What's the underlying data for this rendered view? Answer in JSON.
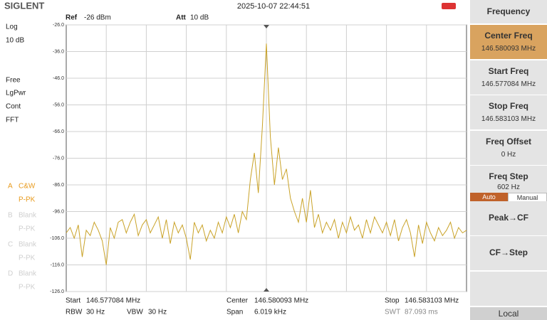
{
  "header": {
    "brand": "SIGLENT",
    "datetime": "2025-10-07 22:44:51"
  },
  "left_panel": {
    "scale": "Log",
    "scale_div": "10 dB",
    "trigger": "Free",
    "detector": "LgPwr",
    "sweep": "Cont",
    "mode": "FFT",
    "traces": [
      {
        "letter": "A",
        "mode": "C&W",
        "det": "P-PK"
      },
      {
        "letter": "B",
        "mode": "Blank",
        "det": "P-PK"
      },
      {
        "letter": "C",
        "mode": "Blank",
        "det": "P-PK"
      },
      {
        "letter": "D",
        "mode": "Blank",
        "det": "P-PK"
      }
    ]
  },
  "chart_data": {
    "type": "line",
    "ref_label": "Ref",
    "ref_value": "-26 dBm",
    "att_label": "Att",
    "att_value": "10 dB",
    "xlim": [
      146.577084,
      146.583103
    ],
    "ylim": [
      -126,
      -26
    ],
    "yticks": [
      {
        "value": -26,
        "label": "-26.0"
      },
      {
        "value": -36,
        "label": "-36.0"
      },
      {
        "value": -46,
        "label": "-46.0"
      },
      {
        "value": -56,
        "label": "-56.0"
      },
      {
        "value": -66,
        "label": "-66.0"
      },
      {
        "value": -76,
        "label": "-76.0"
      },
      {
        "value": -86,
        "label": "-86.0"
      },
      {
        "value": -96,
        "label": "-96.0"
      },
      {
        "value": -106,
        "label": "-106.0"
      },
      {
        "value": -116,
        "label": "-116.0"
      },
      {
        "value": -126,
        "label": "-126.0"
      }
    ],
    "grid": true,
    "x": [
      146.577084,
      146.577144,
      146.577204,
      146.577265,
      146.577325,
      146.577385,
      146.577445,
      146.577505,
      146.577566,
      146.577626,
      146.577686,
      146.577746,
      146.577806,
      146.577866,
      146.577927,
      146.577987,
      146.578047,
      146.578107,
      146.578167,
      146.578228,
      146.578288,
      146.578348,
      146.578408,
      146.578468,
      146.578529,
      146.578589,
      146.578649,
      146.578709,
      146.578769,
      146.57883,
      146.57889,
      146.57895,
      146.57901,
      146.57907,
      146.57913,
      146.579191,
      146.579251,
      146.579311,
      146.579371,
      146.579431,
      146.579492,
      146.579552,
      146.579612,
      146.579672,
      146.579732,
      146.579793,
      146.579853,
      146.579913,
      146.579973,
      146.580033,
      146.580093,
      146.580154,
      146.580214,
      146.580274,
      146.580334,
      146.580394,
      146.580455,
      146.580515,
      146.580575,
      146.580635,
      146.580695,
      146.580756,
      146.580816,
      146.580876,
      146.580936,
      146.580996,
      146.581057,
      146.581117,
      146.581177,
      146.581237,
      146.581297,
      146.581357,
      146.581418,
      146.581478,
      146.581538,
      146.581598,
      146.581658,
      146.581719,
      146.581779,
      146.581839,
      146.581899,
      146.581959,
      146.58202,
      146.58208,
      146.58214,
      146.5822,
      146.58226,
      146.582321,
      146.582381,
      146.582441,
      146.582501,
      146.582561,
      146.582621,
      146.582682,
      146.582742,
      146.582802,
      146.582862,
      146.582922,
      146.582983,
      146.583043,
      146.583103
    ],
    "series": [
      {
        "color": "#c9a227",
        "values": [
          -104,
          -102,
          -106,
          -101,
          -113,
          -103,
          -105,
          -100,
          -103,
          -107,
          -116,
          -102,
          -106,
          -100,
          -99,
          -104,
          -100,
          -97,
          -105,
          -101,
          -99,
          -104,
          -101,
          -98,
          -106,
          -99,
          -108,
          -100,
          -104,
          -101,
          -106,
          -114,
          -100,
          -104,
          -101,
          -107,
          -103,
          -106,
          -100,
          -104,
          -98,
          -102,
          -97,
          -104,
          -96,
          -99,
          -84,
          -74,
          -89,
          -64,
          -33,
          -68,
          -86,
          -72,
          -84,
          -80,
          -91,
          -96,
          -100,
          -91,
          -100,
          -88,
          -102,
          -97,
          -104,
          -100,
          -103,
          -99,
          -106,
          -100,
          -104,
          -98,
          -103,
          -101,
          -106,
          -99,
          -104,
          -98,
          -101,
          -104,
          -100,
          -105,
          -99,
          -107,
          -102,
          -99,
          -104,
          -113,
          -101,
          -108,
          -100,
          -104,
          -107,
          -102,
          -105,
          -103,
          -100,
          -106,
          -102,
          -104,
          -103
        ]
      }
    ]
  },
  "status": {
    "start_label": "Start",
    "start": "146.577084 MHz",
    "center_label": "Center",
    "center": "146.580093 MHz",
    "stop_label": "Stop",
    "stop": "146.583103 MHz",
    "rbw_label": "RBW",
    "rbw": "30 Hz",
    "vbw_label": "VBW",
    "vbw": "30 Hz",
    "span_label": "Span",
    "span": "6.019 kHz",
    "swt_label": "SWT",
    "swt": "87.093 ms"
  },
  "menu": {
    "title": "Frequency",
    "items": [
      {
        "label": "Center Freq",
        "value": "146.580093 MHz"
      },
      {
        "label": "Start Freq",
        "value": "146.577084 MHz"
      },
      {
        "label": "Stop Freq",
        "value": "146.583103 MHz"
      },
      {
        "label": "Freq Offset",
        "value": "0 Hz"
      },
      {
        "label": "Freq Step",
        "value": "602 Hz"
      },
      {
        "label": "Peak→CF"
      },
      {
        "label": "CF→Step"
      }
    ],
    "step_modes": [
      "Auto",
      "Manual"
    ],
    "footer": "Local"
  }
}
